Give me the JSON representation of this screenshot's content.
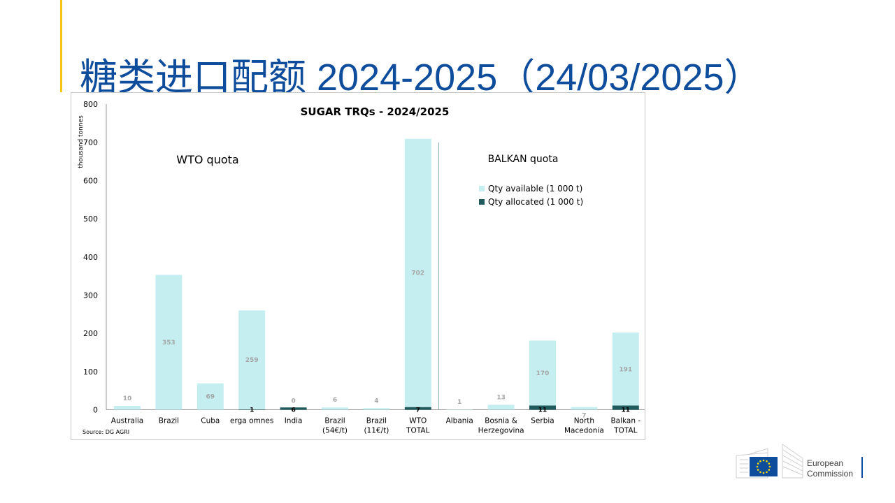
{
  "slide": {
    "title": "糖类进口配额 2024-2025（24/03/2025）"
  },
  "logo": {
    "line1": "European",
    "line2": "Commission"
  },
  "colors": {
    "title": "#0e4c9c",
    "accent": "#f5c518",
    "available": "#c5eef1",
    "allocated": "#1f5a5c"
  },
  "chart_data": {
    "type": "bar",
    "title": "SUGAR TRQs - 2024/2025",
    "ylabel": "thousand tonnes",
    "ylim": [
      0,
      800
    ],
    "yticks": [
      0,
      100,
      200,
      300,
      400,
      500,
      600,
      700,
      800
    ],
    "grid": false,
    "stacked": true,
    "source": "Source: DG AGRI",
    "group_labels": [
      "WTO  quota",
      "BALKAN  quota"
    ],
    "categories": [
      "Australia",
      "Brazil",
      "Cuba",
      "erga omnes",
      "India",
      "Brazil (54€/t)",
      "Brazil (11€/t)",
      "WTO TOTAL",
      "Albania",
      "Bosnia & Herzegovina",
      "Serbia",
      "North Macedonia",
      "Balkan - TOTAL"
    ],
    "category_lines": [
      [
        "Australia"
      ],
      [
        "Brazil"
      ],
      [
        "Cuba"
      ],
      [
        "erga omnes"
      ],
      [
        "India"
      ],
      [
        "Brazil",
        "(54€/t)"
      ],
      [
        "Brazil",
        "(11€/t)"
      ],
      [
        "WTO",
        "TOTAL"
      ],
      [
        "Albania"
      ],
      [
        "Bosnia &",
        "Herzegovina"
      ],
      [
        "Serbia"
      ],
      [
        "North",
        "Macedonia"
      ],
      [
        "Balkan -",
        "TOTAL"
      ]
    ],
    "series": [
      {
        "name": "Qty allocated (1 000 t)",
        "values": [
          0,
          0,
          0,
          1,
          6,
          0,
          0,
          7,
          0,
          0,
          11,
          0,
          11
        ]
      },
      {
        "name": "Qty available (1 000 t)",
        "values": [
          10,
          353,
          69,
          259,
          0,
          6,
          4,
          702,
          1,
          13,
          170,
          7,
          191
        ]
      }
    ],
    "legend_position": "upper-right",
    "allocated_label_values": [
      "",
      "",
      "",
      "1",
      "6",
      "",
      "",
      "7",
      "",
      "",
      "11",
      "",
      "11"
    ],
    "available_label_values": [
      "10",
      "353",
      "69",
      "259",
      "0",
      "6",
      "4",
      "702",
      "1",
      "13",
      "170",
      "7",
      "191"
    ]
  }
}
